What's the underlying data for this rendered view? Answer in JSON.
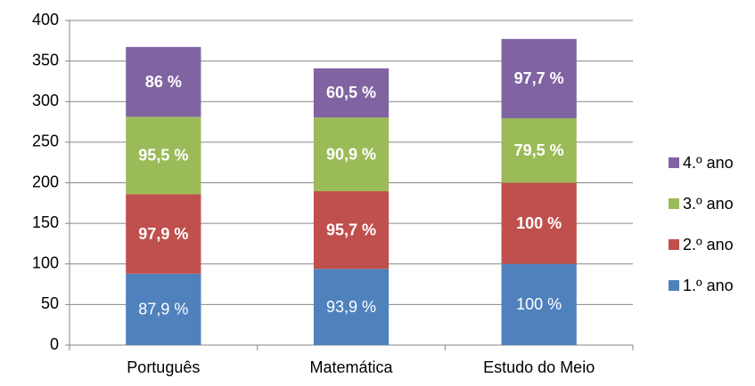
{
  "chart_data": {
    "type": "bar",
    "stacked": true,
    "categories": [
      "Português",
      "Matemática",
      "Estudo do Meio"
    ],
    "series": [
      {
        "name": "1.º ano",
        "color": "#4f81bd",
        "values": [
          87.9,
          93.9,
          100
        ],
        "value_labels": [
          "87,9 %",
          "93,9 %",
          "100 %"
        ]
      },
      {
        "name": "2.º ano",
        "color": "#c0504d",
        "values": [
          97.9,
          95.7,
          100
        ],
        "value_labels": [
          "97,9 %",
          "95,7 %",
          "100 %"
        ]
      },
      {
        "name": "3.º ano",
        "color": "#9bbb59",
        "values": [
          95.5,
          90.9,
          79.5
        ],
        "value_labels": [
          "95,5 %",
          "90,9 %",
          "79,5 %"
        ]
      },
      {
        "name": "4.º ano",
        "color": "#8064a2",
        "values": [
          86,
          60.5,
          97.7
        ],
        "value_labels": [
          "86 %",
          "60,5 %",
          "97,7 %"
        ]
      }
    ],
    "ylim": [
      0,
      400
    ],
    "yticks": [
      0,
      50,
      100,
      150,
      200,
      250,
      300,
      350,
      400
    ],
    "grid": true,
    "legend": "right"
  }
}
